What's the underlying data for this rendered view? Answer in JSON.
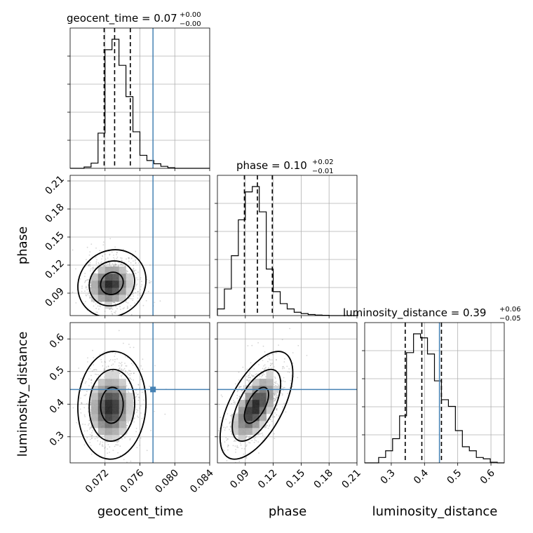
{
  "chart_data": {
    "type": "corner",
    "parameters": [
      "geocent_time",
      "phase",
      "luminosity_distance"
    ],
    "truth_color": "#4682b4",
    "truths": {
      "geocent_time": 0.0775,
      "phase": null,
      "luminosity_distance": 0.445
    },
    "panels": [
      {
        "id": "hist-geocent_time",
        "kind": "hist1d",
        "param": "geocent_time",
        "title": "geocent_time = 0.07",
        "title_sup": "+0.00",
        "title_sub": "−0.00",
        "xlim": [
          0.068,
          0.084
        ],
        "quantiles": [
          0.0719,
          0.0731,
          0.0749
        ],
        "bins": [
          0.068,
          0.0688,
          0.0696,
          0.0704,
          0.0712,
          0.072,
          0.0728,
          0.0736,
          0.0744,
          0.0752,
          0.076,
          0.0768,
          0.0776,
          0.0784,
          0.0792,
          0.08,
          0.0808,
          0.0816,
          0.0824,
          0.0832,
          0.084
        ],
        "counts": [
          0,
          0,
          0.01,
          0.04,
          0.27,
          0.91,
          0.99,
          0.79,
          0.55,
          0.28,
          0.1,
          0.06,
          0.035,
          0.015,
          0.005,
          0,
          0,
          0,
          0,
          0
        ]
      },
      {
        "id": "hist-phase",
        "kind": "hist1d",
        "param": "phase",
        "title": "phase = 0.10",
        "title_sup": "+0.02",
        "title_sub": "−0.01",
        "xlim": [
          0.06,
          0.21
        ],
        "quantiles": [
          0.089,
          0.103,
          0.119
        ],
        "bins": [
          0.06,
          0.0675,
          0.075,
          0.0825,
          0.09,
          0.0975,
          0.105,
          0.1125,
          0.12,
          0.1275,
          0.135,
          0.1425,
          0.15,
          0.1575,
          0.165,
          0.1725,
          0.18,
          0.1875,
          0.195,
          0.2025,
          0.21
        ],
        "counts": [
          0.05,
          0.2,
          0.45,
          0.72,
          0.93,
          0.97,
          0.78,
          0.35,
          0.18,
          0.09,
          0.05,
          0.025,
          0.015,
          0.008,
          0.004,
          0.002,
          0,
          0,
          0,
          0
        ]
      },
      {
        "id": "hist-luminosity_distance",
        "kind": "hist1d",
        "param": "luminosity_distance",
        "title": "luminosity_distance = 0.39",
        "title_sup": "+0.06",
        "title_sub": "−0.05",
        "xlim": [
          0.22,
          0.64
        ],
        "quantiles": [
          0.342,
          0.392,
          0.451
        ],
        "bins": [
          0.22,
          0.241,
          0.262,
          0.283,
          0.304,
          0.325,
          0.346,
          0.367,
          0.388,
          0.409,
          0.43,
          0.451,
          0.472,
          0.493,
          0.514,
          0.535,
          0.556,
          0.577,
          0.598,
          0.619,
          0.64
        ],
        "counts": [
          0,
          0,
          0.04,
          0.09,
          0.18,
          0.35,
          0.82,
          0.96,
          0.93,
          0.81,
          0.61,
          0.47,
          0.42,
          0.24,
          0.12,
          0.09,
          0.04,
          0.03,
          0.005,
          0
        ]
      },
      {
        "id": "contour-phase-vs-geocent_time",
        "kind": "hist2d",
        "xparam": "geocent_time",
        "yparam": "phase",
        "xlim": [
          0.068,
          0.084
        ],
        "ylim": [
          0.066,
          0.216
        ],
        "center": [
          0.0726,
          0.099
        ],
        "sigma": [
          0.0013,
          0.012
        ],
        "rho": 0.1
      },
      {
        "id": "contour-luminosity_distance-vs-geocent_time",
        "kind": "hist2d",
        "xparam": "geocent_time",
        "yparam": "luminosity_distance",
        "xlim": [
          0.068,
          0.084
        ],
        "ylim": [
          0.22,
          0.65
        ],
        "center": [
          0.0726,
          0.39
        ],
        "sigma": [
          0.0013,
          0.055
        ],
        "rho": 0.05
      },
      {
        "id": "contour-luminosity_distance-vs-phase",
        "kind": "hist2d",
        "xparam": "phase",
        "yparam": "luminosity_distance",
        "xlim": [
          0.06,
          0.21
        ],
        "ylim": [
          0.22,
          0.65
        ],
        "center": [
          0.1,
          0.39
        ],
        "sigma": [
          0.013,
          0.055
        ],
        "rho": 0.6
      }
    ],
    "x_ticks": {
      "geocent_time": [
        "0.072",
        "0.076",
        "0.080",
        "0.084"
      ],
      "phase": [
        "0.09",
        "0.12",
        "0.15",
        "0.18",
        "0.21"
      ],
      "luminosity_distance": [
        "0.3",
        "0.4",
        "0.5",
        "0.6"
      ]
    },
    "y_ticks": {
      "phase": [
        "0.09",
        "0.12",
        "0.15",
        "0.18",
        "0.21"
      ],
      "luminosity_distance": [
        "0.3",
        "0.4",
        "0.5",
        "0.6"
      ]
    },
    "x_labels": [
      "geocent_time",
      "phase",
      "luminosity_distance"
    ],
    "y_labels": [
      "phase",
      "luminosity_distance"
    ],
    "grid": true,
    "contour_levels": [
      0.393,
      0.865,
      0.989
    ]
  }
}
